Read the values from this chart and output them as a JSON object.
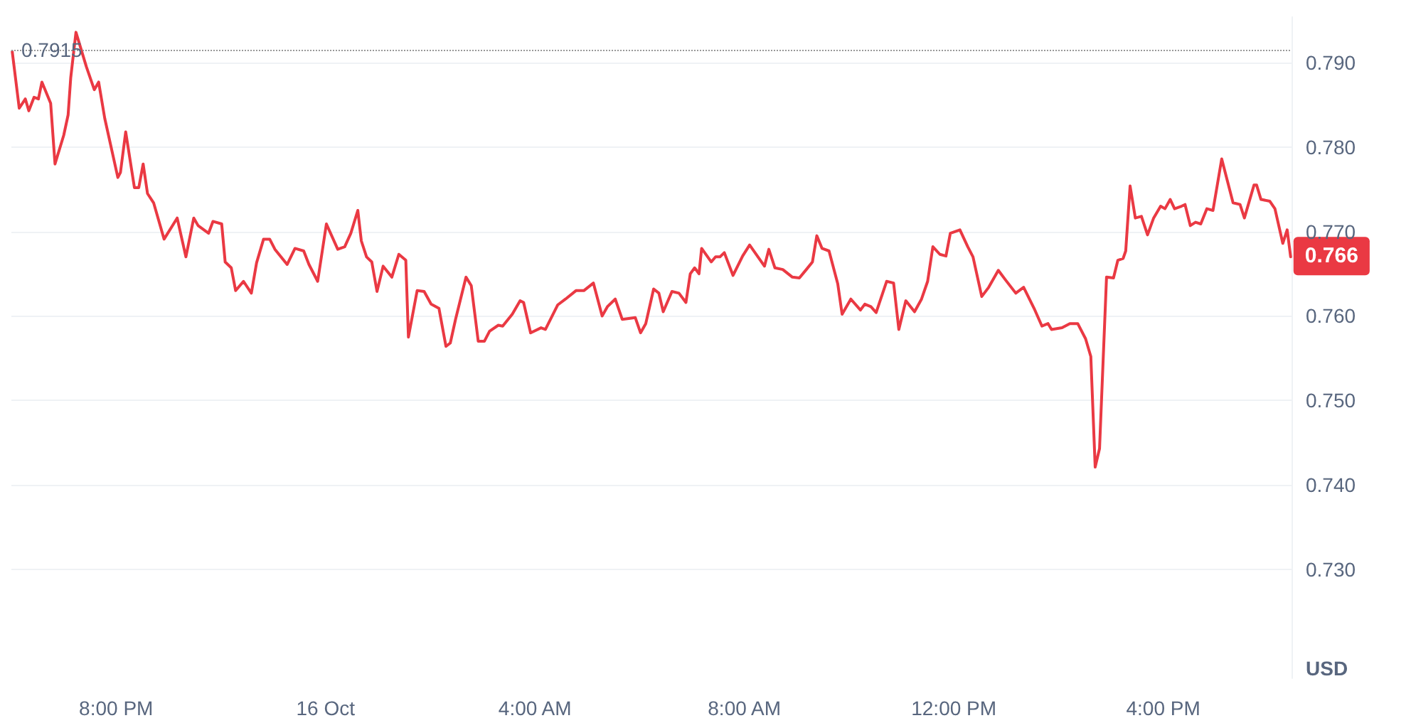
{
  "chart_data": {
    "type": "line",
    "ylabel": "USD",
    "x": [
      "--10-15T18:01",
      "--10-15T18:09",
      "--10-15T18:16",
      "--10-15T18:20",
      "--10-15T18:26",
      "--10-15T18:31",
      "--10-15T18:35",
      "--10-15T18:45",
      "--10-15T18:50",
      "--10-15T19:00",
      "--10-15T19:05",
      "--10-15T19:08",
      "--10-15T19:14",
      "--10-15T19:26",
      "--10-15T19:35",
      "--10-15T19:40",
      "--10-15T19:47",
      "--10-15T20:02",
      "--10-15T20:05",
      "--10-15T20:11",
      "--10-15T20:21",
      "--10-15T20:26",
      "--10-15T20:31",
      "--10-15T20:36",
      "--10-15T20:43",
      "--10-15T20:55",
      "--10-15T21:10",
      "--10-15T21:20",
      "--10-15T21:29",
      "--10-15T21:34",
      "--10-15T21:46",
      "--10-15T21:51",
      "--10-15T22:01",
      "--10-15T22:05",
      "--10-15T22:12",
      "--10-15T22:17",
      "--10-15T22:26",
      "--10-15T22:35",
      "--10-15T22:41",
      "--10-15T22:49",
      "--10-15T22:56",
      "--10-15T23:02",
      "--10-15T23:16",
      "--10-15T23:25",
      "--10-15T23:35",
      "--10-15T23:41",
      "--10-15T23:51",
      "--10-16T00:01",
      "--10-16T00:14",
      "--10-16T00:22",
      "--10-16T00:29",
      "--10-16T00:37",
      "--10-16T00:41",
      "--10-16T00:47",
      "--10-16T00:53",
      "--10-16T00:59",
      "--10-16T01:06",
      "--10-16T01:16",
      "--10-16T01:24",
      "--10-16T01:32",
      "--10-16T01:35",
      "--10-16T01:45",
      "--10-16T01:53",
      "--10-16T02:01",
      "--10-16T02:10",
      "--10-16T02:18",
      "--10-16T02:23",
      "--10-16T02:29",
      "--10-16T02:41",
      "--10-16T02:47",
      "--10-16T02:55",
      "--10-16T03:02",
      "--10-16T03:08",
      "--10-16T03:18",
      "--10-16T03:23",
      "--10-16T03:34",
      "--10-16T03:43",
      "--10-16T03:47",
      "--10-16T03:55",
      "--10-16T04:07",
      "--10-16T04:12",
      "--10-16T04:26",
      "--10-16T04:35",
      "--10-16T04:47",
      "--10-16T04:56",
      "--10-16T05:07",
      "--10-16T05:17",
      "--10-16T05:23",
      "--10-16T05:32",
      "--10-16T05:40",
      "--10-16T05:55",
      "--10-16T06:01",
      "--10-16T06:07",
      "--10-16T06:16",
      "--10-16T06:22",
      "--10-16T06:27",
      "--10-16T06:37",
      "--10-16T06:45",
      "--10-16T06:53",
      "--10-16T06:58",
      "--10-16T07:03",
      "--10-16T07:08",
      "--10-16T07:11",
      "--10-16T07:22",
      "--10-16T07:27",
      "--10-16T07:32",
      "--10-16T07:37",
      "--10-16T07:47",
      "--10-16T07:58",
      "--10-16T08:06",
      "--10-16T08:23",
      "--10-16T08:28",
      "--10-16T08:35",
      "--10-16T08:44",
      "--10-16T08:55",
      "--10-16T09:03",
      "--10-16T09:11",
      "--10-16T09:18",
      "--10-16T09:23",
      "--10-16T09:29",
      "--10-16T09:37",
      "--10-16T09:47",
      "--10-16T09:52",
      "--10-16T10:02",
      "--10-16T10:13",
      "--10-16T10:18",
      "--10-16T10:25",
      "--10-16T10:31",
      "--10-16T10:43",
      "--10-16T10:51",
      "--10-16T10:57",
      "--10-16T11:05",
      "--10-16T11:15",
      "--10-16T11:23",
      "--10-16T11:30",
      "--10-16T11:36",
      "--10-16T11:44",
      "--10-16T11:51",
      "--10-16T11:56",
      "--10-16T12:07",
      "--10-16T12:16",
      "--10-16T12:22",
      "--10-16T12:32",
      "--10-16T12:40",
      "--10-16T12:51",
      "--10-16T12:59",
      "--10-16T13:11",
      "--10-16T13:20",
      "--10-16T13:32",
      "--10-16T13:41",
      "--10-16T13:48",
      "--10-16T13:52",
      "--10-16T14:04",
      "--10-16T14:13",
      "--10-16T14:22",
      "--10-16T14:31",
      "--10-16T14:37",
      "--10-16T14:42",
      "--10-16T14:47",
      "--10-16T14:55",
      "--10-16T15:03",
      "--10-16T15:08",
      "--10-16T15:14",
      "--10-16T15:17",
      "--10-16T15:22",
      "--10-16T15:28",
      "--10-16T15:35",
      "--10-16T15:42",
      "--10-16T15:49",
      "--10-16T15:57",
      "--10-16T16:02",
      "--10-16T16:08",
      "--10-16T16:13",
      "--10-16T16:21",
      "--10-16T16:25",
      "--10-16T16:31",
      "--10-16T16:37",
      "--10-16T16:43",
      "--10-16T16:50",
      "--10-16T16:57",
      "--10-16T17:07",
      "--10-16T17:20",
      "--10-16T17:28",
      "--10-16T17:33",
      "--10-16T17:44",
      "--10-16T17:47",
      "--10-16T17:52",
      "--10-16T18:02",
      "--10-16T18:08",
      "--10-16T18:17",
      "--10-16T18:22",
      "--10-16T18:26"
    ],
    "series": [
      {
        "color": "#ea3943",
        "values": [
          0.7913,
          0.7846,
          0.7857,
          0.7843,
          0.7859,
          0.7857,
          0.7877,
          0.7852,
          0.778,
          0.7814,
          0.7838,
          0.7882,
          0.7936,
          0.7895,
          0.7868,
          0.7877,
          0.7834,
          0.7764,
          0.777,
          0.7818,
          0.7752,
          0.7752,
          0.778,
          0.7745,
          0.7734,
          0.7691,
          0.7716,
          0.767,
          0.7716,
          0.7707,
          0.7698,
          0.7712,
          0.7709,
          0.7664,
          0.7657,
          0.763,
          0.7641,
          0.7627,
          0.7663,
          0.7691,
          0.7691,
          0.7679,
          0.7661,
          0.768,
          0.7677,
          0.7661,
          0.7641,
          0.7709,
          0.7679,
          0.7682,
          0.7698,
          0.7725,
          0.7689,
          0.767,
          0.7664,
          0.7629,
          0.7659,
          0.7646,
          0.7673,
          0.7666,
          0.7575,
          0.763,
          0.7629,
          0.7614,
          0.7609,
          0.7564,
          0.7568,
          0.7596,
          0.7646,
          0.7636,
          0.757,
          0.757,
          0.7582,
          0.7589,
          0.7588,
          0.7602,
          0.7618,
          0.7616,
          0.758,
          0.7586,
          0.7584,
          0.7613,
          0.762,
          0.763,
          0.763,
          0.7639,
          0.76,
          0.7611,
          0.762,
          0.7596,
          0.7598,
          0.758,
          0.7591,
          0.7632,
          0.7627,
          0.7605,
          0.7629,
          0.7627,
          0.7616,
          0.765,
          0.7657,
          0.765,
          0.768,
          0.7664,
          0.767,
          0.767,
          0.7675,
          0.7648,
          0.7671,
          0.7684,
          0.7659,
          0.7679,
          0.7657,
          0.7655,
          0.7646,
          0.7645,
          0.7655,
          0.7664,
          0.7695,
          0.768,
          0.7677,
          0.7638,
          0.7602,
          0.762,
          0.7607,
          0.7614,
          0.7611,
          0.7604,
          0.7641,
          0.7639,
          0.7584,
          0.7618,
          0.7605,
          0.762,
          0.7641,
          0.7682,
          0.7673,
          0.7671,
          0.7698,
          0.7702,
          0.7682,
          0.767,
          0.7623,
          0.7634,
          0.7654,
          0.7643,
          0.7627,
          0.7634,
          0.7609,
          0.7588,
          0.7591,
          0.7584,
          0.7586,
          0.7591,
          0.7591,
          0.7573,
          0.7552,
          0.7421,
          0.7443,
          0.7646,
          0.7645,
          0.7666,
          0.7668,
          0.7677,
          0.7754,
          0.7716,
          0.7718,
          0.7696,
          0.7716,
          0.773,
          0.7727,
          0.7738,
          0.7727,
          0.773,
          0.7732,
          0.7707,
          0.7711,
          0.7709,
          0.7727,
          0.7725,
          0.7786,
          0.7734,
          0.7732,
          0.7716,
          0.7755,
          0.7755,
          0.7738,
          0.7736,
          0.7727,
          0.7686,
          0.7702,
          0.767
        ]
      }
    ],
    "xlim": [
      "--10-15T18:00",
      "--10-16T18:27"
    ],
    "xticks": [
      {
        "value": "--10-15T20:00",
        "label": "8:00 PM"
      },
      {
        "value": "--10-16T00:00",
        "label": "16 Oct"
      },
      {
        "value": "--10-16T04:00",
        "label": "4:00 AM"
      },
      {
        "value": "--10-16T08:00",
        "label": "8:00 AM"
      },
      {
        "value": "--10-16T12:00",
        "label": "12:00 PM"
      },
      {
        "value": "--10-16T16:00",
        "label": "4:00 PM"
      }
    ],
    "ylim": [
      0.7171,
      0.7954
    ],
    "yticks": [
      {
        "value": 0.73,
        "label": "0.730"
      },
      {
        "value": 0.74,
        "label": "0.740"
      },
      {
        "value": 0.75,
        "label": "0.750"
      },
      {
        "value": 0.76,
        "label": "0.760"
      },
      {
        "value": 0.77,
        "label": "0.770"
      },
      {
        "value": 0.78,
        "label": "0.780"
      },
      {
        "value": 0.79,
        "label": "0.790"
      }
    ],
    "ref_lines": [
      {
        "axis": "y",
        "value": 0.7915,
        "label": "0.7915",
        "color": "#999999",
        "line_style": "dotted"
      }
    ],
    "annotations": [
      "0.766"
    ],
    "grid": "y",
    "marker": "none",
    "line_style": "solid"
  }
}
